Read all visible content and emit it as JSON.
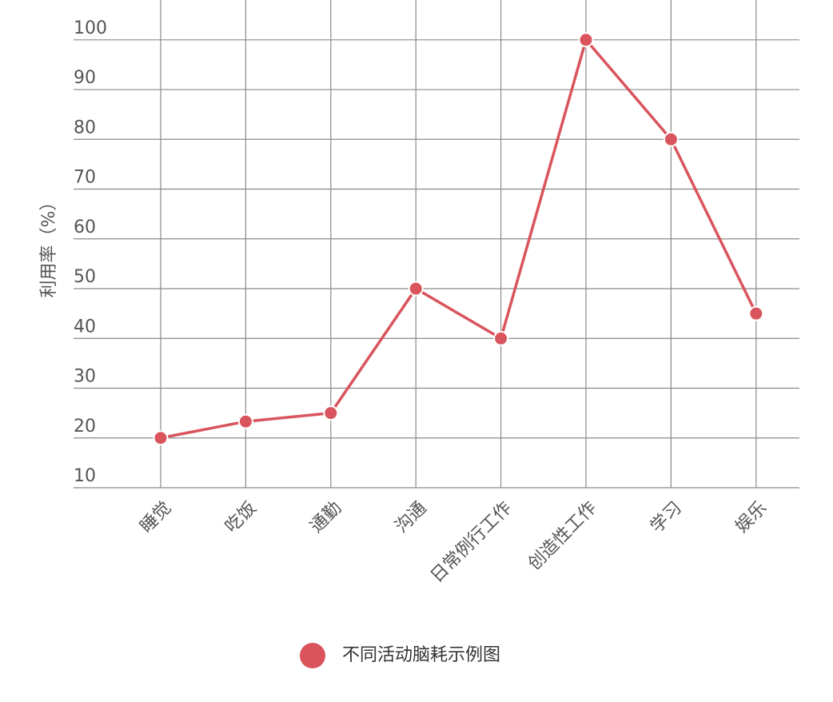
{
  "chart_data": {
    "type": "line",
    "y_label": "利用率（%）",
    "categories": [
      "睡觉",
      "吃饭",
      "通勤",
      "沟通",
      "日常例行工作",
      "创造性工作",
      "学习",
      "娱乐"
    ],
    "series": [
      {
        "name": "不同活动脑耗示例图",
        "color": "#d9545c",
        "values": [
          20,
          23.3,
          25,
          50,
          40,
          100,
          80,
          45
        ]
      }
    ],
    "ylim": [
      10,
      108
    ],
    "yticks": [
      10,
      20,
      30,
      40,
      50,
      60,
      70,
      80,
      90,
      100
    ],
    "grid": true
  }
}
